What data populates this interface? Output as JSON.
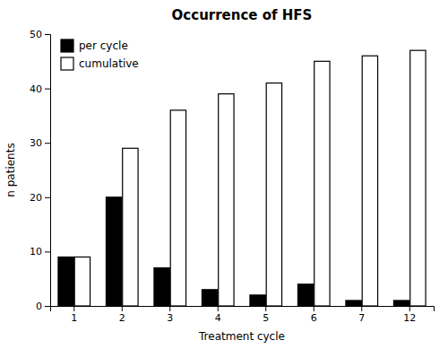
{
  "chart_data": {
    "type": "bar",
    "title": "Occurrence of HFS",
    "xlabel": "Treatment cycle",
    "ylabel": "n patients",
    "categories": [
      "1",
      "2",
      "3",
      "4",
      "5",
      "6",
      "7",
      "12"
    ],
    "series": [
      {
        "name": "per cycle",
        "color": "#000000",
        "values": [
          9,
          20,
          7,
          3,
          2,
          4,
          1,
          1
        ]
      },
      {
        "name": "cumulative",
        "color": "#ffffff",
        "values": [
          9,
          29,
          36,
          39,
          41,
          45,
          46,
          47
        ]
      }
    ],
    "ylim": [
      0,
      50
    ],
    "yticks": [
      0,
      10,
      20,
      30,
      40,
      50
    ],
    "grid": false,
    "legend": "upper-left"
  }
}
